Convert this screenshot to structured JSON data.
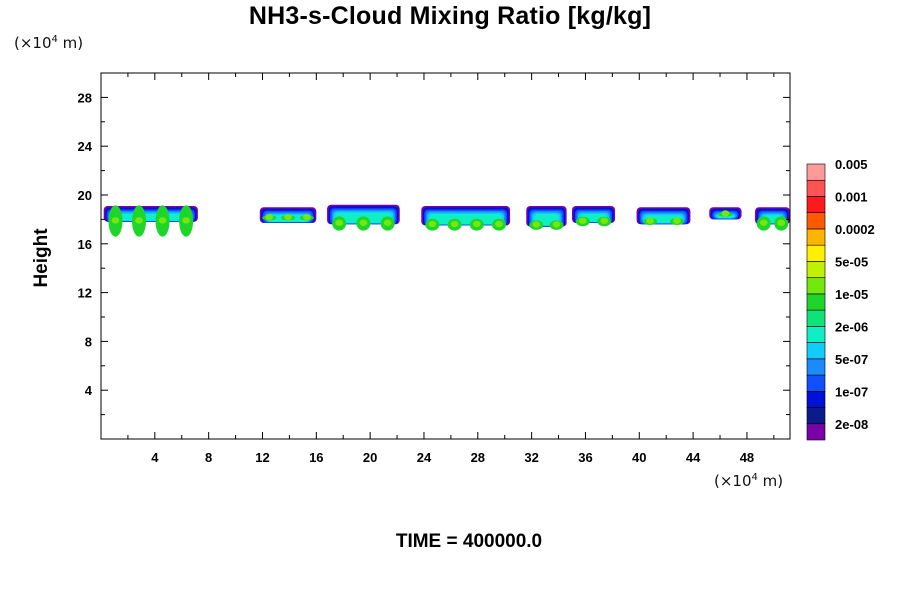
{
  "chart_data": {
    "type": "heatmap",
    "title": "NH3-s-Cloud Mixing Ratio [kg/kg]",
    "ylabel": "Height",
    "x_unit_prefix": "(×10",
    "x_unit_exp": "4",
    "x_unit_suffix": " m)",
    "y_unit_prefix": "(×10",
    "y_unit_exp": "4",
    "y_unit_suffix": " m)",
    "xlim": [
      0,
      51.2
    ],
    "ylim": [
      0,
      30
    ],
    "x_ticks": [
      4,
      8,
      12,
      16,
      20,
      24,
      28,
      32,
      36,
      40,
      44,
      48
    ],
    "x_tick_labels": [
      "4",
      "8",
      "12",
      "16",
      "20",
      "24",
      "28",
      "32",
      "36",
      "40",
      "44",
      "48"
    ],
    "y_ticks": [
      4,
      8,
      12,
      16,
      20,
      24,
      28
    ],
    "y_tick_labels": [
      "4",
      "8",
      "12",
      "16",
      "20",
      "24",
      "28"
    ],
    "colorbar": {
      "colors": [
        "#7a00aa",
        "#0a1c8c",
        "#0012d6",
        "#1050ff",
        "#1a8cff",
        "#10ccff",
        "#10eec8",
        "#10e27a",
        "#1ed62a",
        "#74e80e",
        "#c0f000",
        "#fff000",
        "#ffb400",
        "#ff5a00",
        "#ff1a1a",
        "#ff5454",
        "#ff9a9a"
      ],
      "labels": [
        "2e-08",
        "1e-07",
        "5e-07",
        "2e-06",
        "1e-05",
        "5e-05",
        "0.0002",
        "0.001",
        "0.005"
      ]
    },
    "cloud_cells": [
      {
        "x0": 0.2,
        "x1": 7.2,
        "ytop": 19.1,
        "ybot": 17.8,
        "ycore_bot": 16.8
      },
      {
        "x0": 11.8,
        "x1": 16.0,
        "ytop": 19.0,
        "ybot": 17.7,
        "ycore_bot": 17.9
      },
      {
        "x0": 16.8,
        "x1": 22.2,
        "ytop": 19.2,
        "ybot": 17.6,
        "ycore_bot": 17.3
      },
      {
        "x0": 23.8,
        "x1": 30.4,
        "ytop": 19.1,
        "ybot": 17.5,
        "ycore_bot": 17.3
      },
      {
        "x0": 31.6,
        "x1": 34.6,
        "ytop": 19.1,
        "ybot": 17.4,
        "ycore_bot": 17.3
      },
      {
        "x0": 35.0,
        "x1": 38.2,
        "ytop": 19.1,
        "ybot": 17.7,
        "ycore_bot": 17.6
      },
      {
        "x0": 39.8,
        "x1": 43.8,
        "ytop": 19.0,
        "ybot": 17.6,
        "ycore_bot": 17.6
      },
      {
        "x0": 45.2,
        "x1": 47.6,
        "ytop": 19.0,
        "ybot": 18.0,
        "ycore_bot": 18.2
      },
      {
        "x0": 48.6,
        "x1": 51.2,
        "ytop": 19.0,
        "ybot": 17.6,
        "ycore_bot": 17.3
      }
    ]
  },
  "footer": {
    "time_label": "TIME = 400000.0"
  }
}
